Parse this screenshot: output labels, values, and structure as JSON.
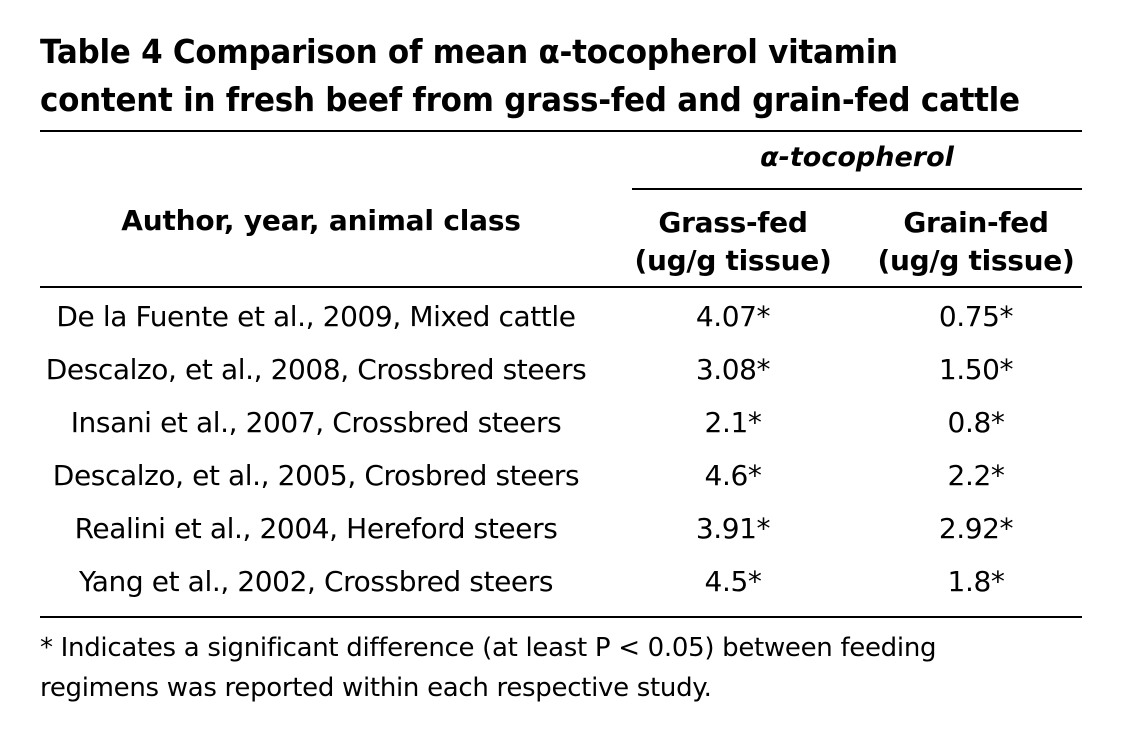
{
  "title": {
    "line1": "Table 4 Comparison of mean α-tocopherol vitamin",
    "line2": "content in fresh beef from grass-fed and grain-fed cattle"
  },
  "header": {
    "group": "α-tocopherol",
    "author": "Author, year, animal class",
    "grass_line1": "Grass-fed",
    "grass_line2": "(ug/g tissue)",
    "grain_line1": "Grain-fed",
    "grain_line2": "(ug/g tissue)"
  },
  "rows": [
    {
      "author": "De la Fuente et al., 2009, Mixed cattle",
      "grass": "4.07*",
      "grain": "0.75*"
    },
    {
      "author": "Descalzo, et al., 2008, Crossbred steers",
      "grass": "3.08*",
      "grain": "1.50*"
    },
    {
      "author": "Insani et al., 2007, Crossbred steers",
      "grass": "2.1*",
      "grain": "0.8*"
    },
    {
      "author": "Descalzo, et al., 2005, Crosbred steers",
      "grass": "4.6*",
      "grain": "2.2*"
    },
    {
      "author": "Realini et al., 2004, Hereford steers",
      "grass": "3.91*",
      "grain": "2.92*"
    },
    {
      "author": "Yang et al., 2002, Crossbred steers",
      "grass": "4.5*",
      "grain": "1.8*"
    }
  ],
  "footnote": {
    "line1": "* Indicates a significant difference (at least P < 0.05) between feeding",
    "line2": "regimens was reported within each respective study."
  }
}
